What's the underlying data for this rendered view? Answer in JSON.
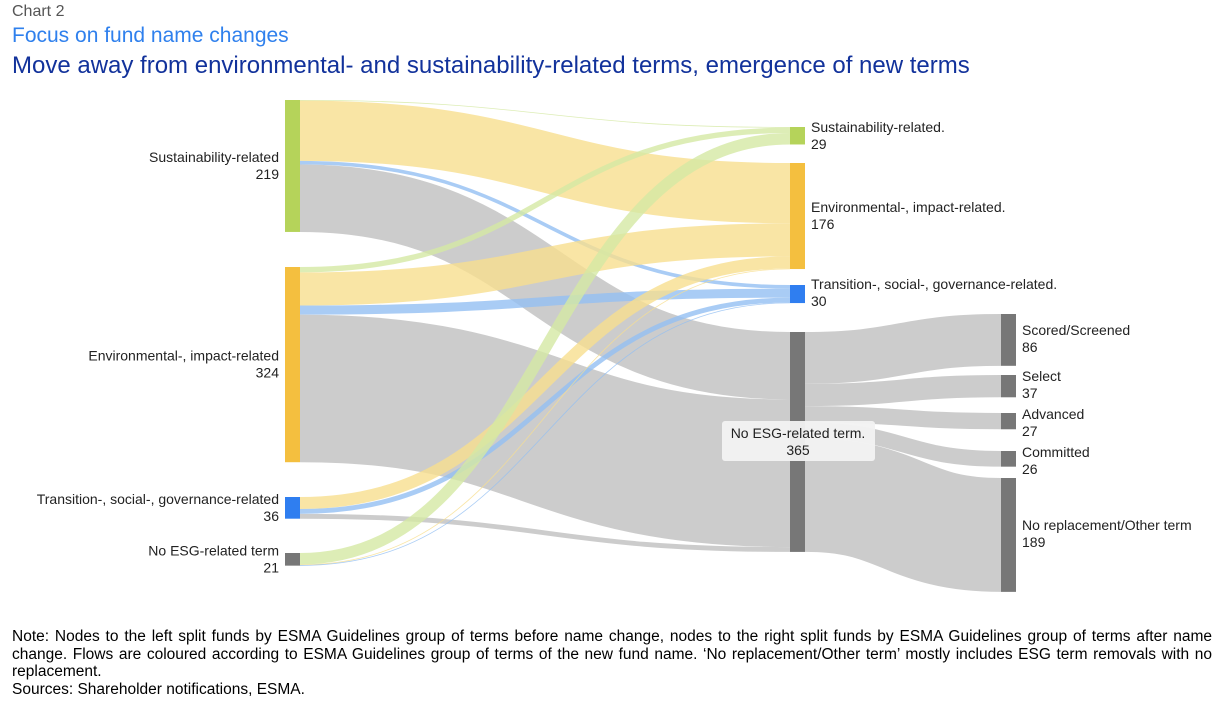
{
  "header": {
    "chart_number": "Chart   2",
    "subtitle": "Focus on fund name changes",
    "title": "Move away from environmental- and sustainability-related terms, emergence of new terms"
  },
  "chart_data": {
    "type": "sankey",
    "title": "Move away from environmental- and sustainability-related terms, emergence of new terms",
    "colors": {
      "sustainability": "#b5d35a",
      "environmental": "#f4bf3f",
      "transition": "#2f7ef0",
      "no_esg": "#777777",
      "flow_sustainability": "#d4e8a4",
      "flow_environmental": "#f8de8e",
      "flow_transition": "#93bff3",
      "flow_no_esg": "#c9c9c9"
    },
    "nodes": [
      {
        "id": "L_sus",
        "column": 0,
        "label": "Sustainability-related",
        "value": 219,
        "color_key": "sustainability"
      },
      {
        "id": "L_env",
        "column": 0,
        "label": "Environmental-, impact-related",
        "value": 324,
        "color_key": "environmental"
      },
      {
        "id": "L_tra",
        "column": 0,
        "label": "Transition-, social-, governance-related",
        "value": 36,
        "color_key": "transition"
      },
      {
        "id": "L_no",
        "column": 0,
        "label": "No ESG-related term",
        "value": 21,
        "color_key": "no_esg"
      },
      {
        "id": "M_sus",
        "column": 1,
        "label": "Sustainability-related.",
        "value": 29,
        "color_key": "sustainability"
      },
      {
        "id": "M_env",
        "column": 1,
        "label": "Environmental-, impact-related.",
        "value": 176,
        "color_key": "environmental"
      },
      {
        "id": "M_tra",
        "column": 1,
        "label": "Transition-, social-, governance-related.",
        "value": 30,
        "color_key": "transition"
      },
      {
        "id": "M_no",
        "column": 1,
        "label": "No ESG-related term.",
        "value": 365,
        "color_key": "no_esg"
      },
      {
        "id": "R_sco",
        "column": 2,
        "label": "Scored/Screened",
        "value": 86,
        "color_key": "no_esg"
      },
      {
        "id": "R_sel",
        "column": 2,
        "label": "Select",
        "value": 37,
        "color_key": "no_esg"
      },
      {
        "id": "R_adv",
        "column": 2,
        "label": "Advanced",
        "value": 27,
        "color_key": "no_esg"
      },
      {
        "id": "R_com",
        "column": 2,
        "label": "Committed",
        "value": 26,
        "color_key": "no_esg"
      },
      {
        "id": "R_nor",
        "column": 2,
        "label": "No replacement/Other term",
        "value": 189,
        "color_key": "no_esg"
      }
    ],
    "links": [
      {
        "source": "L_sus",
        "target": "M_sus",
        "value": 1
      },
      {
        "source": "L_sus",
        "target": "M_env",
        "value": 100
      },
      {
        "source": "L_sus",
        "target": "M_tra",
        "value": 6
      },
      {
        "source": "L_sus",
        "target": "M_no",
        "value": 112
      },
      {
        "source": "L_env",
        "target": "M_sus",
        "value": 9
      },
      {
        "source": "L_env",
        "target": "M_env",
        "value": 55
      },
      {
        "source": "L_env",
        "target": "M_tra",
        "value": 15
      },
      {
        "source": "L_env",
        "target": "M_no",
        "value": 245
      },
      {
        "source": "L_tra",
        "target": "M_env",
        "value": 20
      },
      {
        "source": "L_tra",
        "target": "M_tra",
        "value": 8
      },
      {
        "source": "L_tra",
        "target": "M_no",
        "value": 8
      },
      {
        "source": "L_no",
        "target": "M_sus",
        "value": 19
      },
      {
        "source": "L_no",
        "target": "M_env",
        "value": 1
      },
      {
        "source": "L_no",
        "target": "M_tra",
        "value": 1
      },
      {
        "source": "M_no",
        "target": "R_sco",
        "value": 86
      },
      {
        "source": "M_no",
        "target": "R_sel",
        "value": 37
      },
      {
        "source": "M_no",
        "target": "R_adv",
        "value": 27
      },
      {
        "source": "M_no",
        "target": "R_com",
        "value": 26
      },
      {
        "source": "M_no",
        "target": "R_nor",
        "value": 189
      }
    ]
  },
  "footer": {
    "note": "Note: Nodes to the left split funds by ESMA Guidelines group of terms before name change, nodes to the right split funds by ESMA Guidelines group of terms after name change. Flows are coloured according to ESMA Guidelines group of terms of the new fund name. ‘No replacement/Other term’ mostly includes ESG term removals with no replacement.",
    "sources": "Sources: Shareholder notifications, ESMA."
  }
}
